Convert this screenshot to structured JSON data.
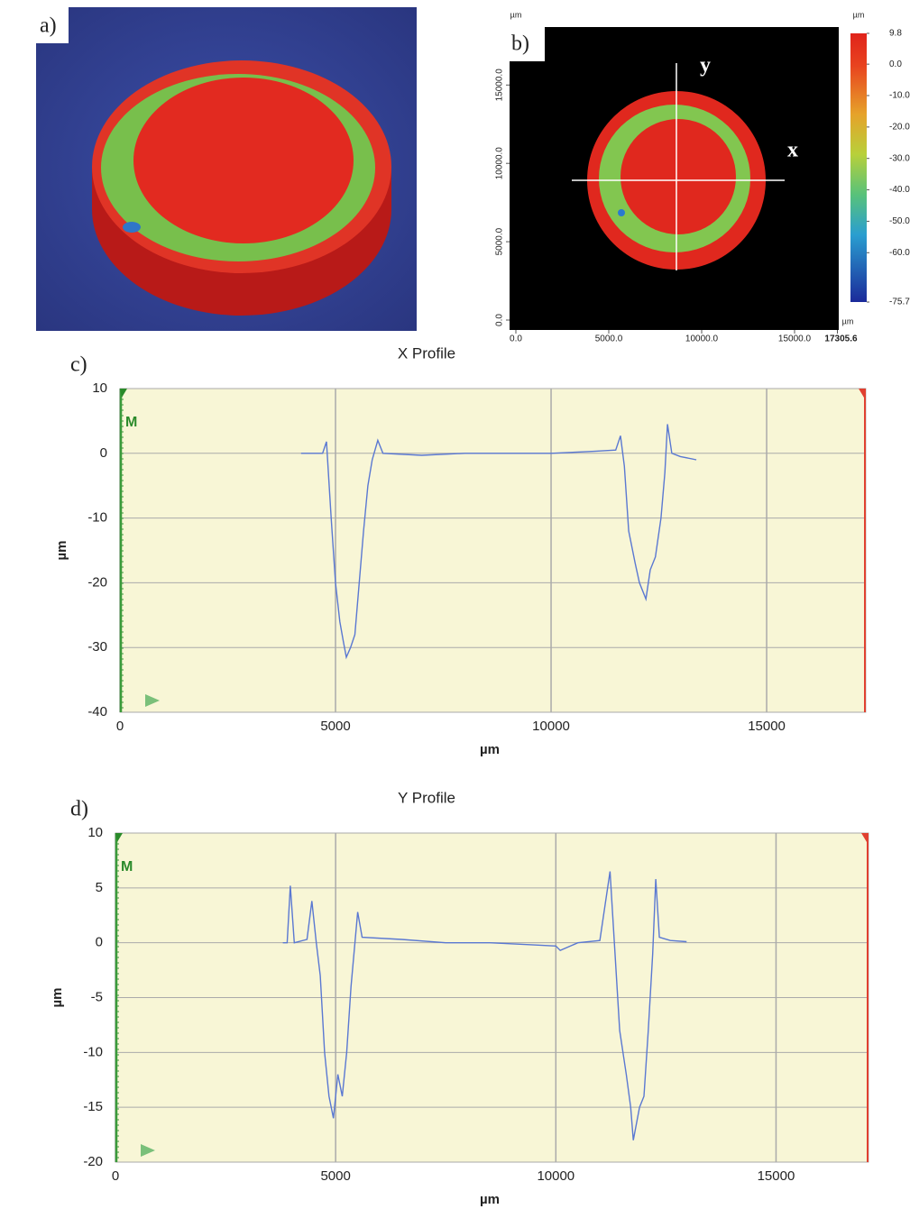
{
  "chart_data": [
    {
      "type": "surface3d",
      "label": "a)"
    },
    {
      "type": "heatmap",
      "label": "b)",
      "x_unit": "µm",
      "y_unit": "µm",
      "xlim": [
        0,
        17305.6
      ],
      "ylim": [
        0,
        18700
      ],
      "xticks": [
        {
          "value": 0,
          "label": "0.0"
        },
        {
          "value": 5000,
          "label": "5000.0"
        },
        {
          "value": 10000,
          "label": "10000.0"
        },
        {
          "value": 15000,
          "label": "15000.0"
        },
        17305.6
      ],
      "yticks": [
        {
          "value": 0,
          "label": "0.0"
        },
        {
          "value": 5000,
          "label": "5000.0"
        },
        {
          "value": 10000,
          "label": "10000.0"
        },
        {
          "value": 15000,
          "label": "15000.0"
        }
      ],
      "annotations": [
        "x",
        "y"
      ],
      "colorbar": {
        "unit": "µm",
        "lim": [
          -75.7,
          9.8
        ],
        "ticks": [
          9.8,
          {
            "value": 0,
            "label": "0.0"
          },
          {
            "value": -10,
            "label": "-10.0"
          },
          {
            "value": -20,
            "label": "-20.0"
          },
          {
            "value": -30,
            "label": "-30.0"
          },
          {
            "value": -40,
            "label": "-40.0"
          },
          {
            "value": -50,
            "label": "-50.0"
          },
          {
            "value": -60,
            "label": "-60.0"
          },
          -75.7
        ]
      }
    },
    {
      "type": "line",
      "label": "c)",
      "title": "X Profile",
      "x_label": "µm",
      "y_label": "µm",
      "marker": "M",
      "color": "#5a78d2",
      "grid": true,
      "xlim": [
        0,
        17300
      ],
      "ylim": [
        -40,
        10
      ],
      "xticks": [
        0,
        5000,
        10000,
        15000
      ],
      "yticks": [
        -40,
        -30,
        -20,
        -10,
        0,
        10
      ],
      "x": [
        4200,
        4700,
        4790,
        4900,
        5000,
        5100,
        5180,
        5250,
        5350,
        5450,
        5550,
        5650,
        5750,
        5850,
        5980,
        6100,
        7000,
        8000,
        9000,
        10000,
        11000,
        11500,
        11610,
        11700,
        11800,
        11950,
        12050,
        12200,
        12300,
        12420,
        12550,
        12640,
        12700,
        12800,
        13000,
        13370
      ],
      "values": [
        0,
        0,
        1.8,
        -10,
        -20,
        -26,
        -29,
        -31.5,
        -30,
        -28,
        -20,
        -12,
        -5,
        -1,
        2,
        0,
        -0.3,
        0,
        0,
        0,
        0.3,
        0.5,
        2.7,
        -2,
        -12,
        -17,
        -20,
        -22.5,
        -18,
        -16,
        -10,
        -3,
        4.5,
        0,
        -0.5,
        -1
      ]
    },
    {
      "type": "line",
      "label": "d)",
      "title": "Y Profile",
      "x_label": "µm",
      "y_label": "µm",
      "marker": "M",
      "color": "#5a78d2",
      "grid": true,
      "xlim": [
        0,
        17100
      ],
      "ylim": [
        -20,
        10
      ],
      "xticks": [
        0,
        5000,
        10000,
        15000
      ],
      "yticks": [
        -20,
        -15,
        -10,
        -5,
        0,
        5,
        10
      ],
      "x": [
        3800,
        3900,
        3970,
        4060,
        4350,
        4460,
        4560,
        4650,
        4750,
        4850,
        4950,
        5050,
        5150,
        5250,
        5350,
        5500,
        5600,
        6500,
        7500,
        8500,
        9500,
        10000,
        10100,
        10500,
        11000,
        11230,
        11330,
        11450,
        11600,
        11700,
        11760,
        11900,
        12000,
        12100,
        12200,
        12270,
        12350,
        12600,
        12970
      ],
      "values": [
        0,
        0,
        5.2,
        0,
        0.3,
        3.8,
        0,
        -3,
        -10,
        -14,
        -16,
        -12,
        -14,
        -10,
        -4,
        2.8,
        0.5,
        0.3,
        0,
        0,
        -0.2,
        -0.3,
        -0.7,
        0,
        0.2,
        6.5,
        0,
        -8,
        -12,
        -15,
        -18,
        -15,
        -14,
        -8,
        -1,
        5.8,
        0.5,
        0.2,
        0.1
      ]
    }
  ]
}
